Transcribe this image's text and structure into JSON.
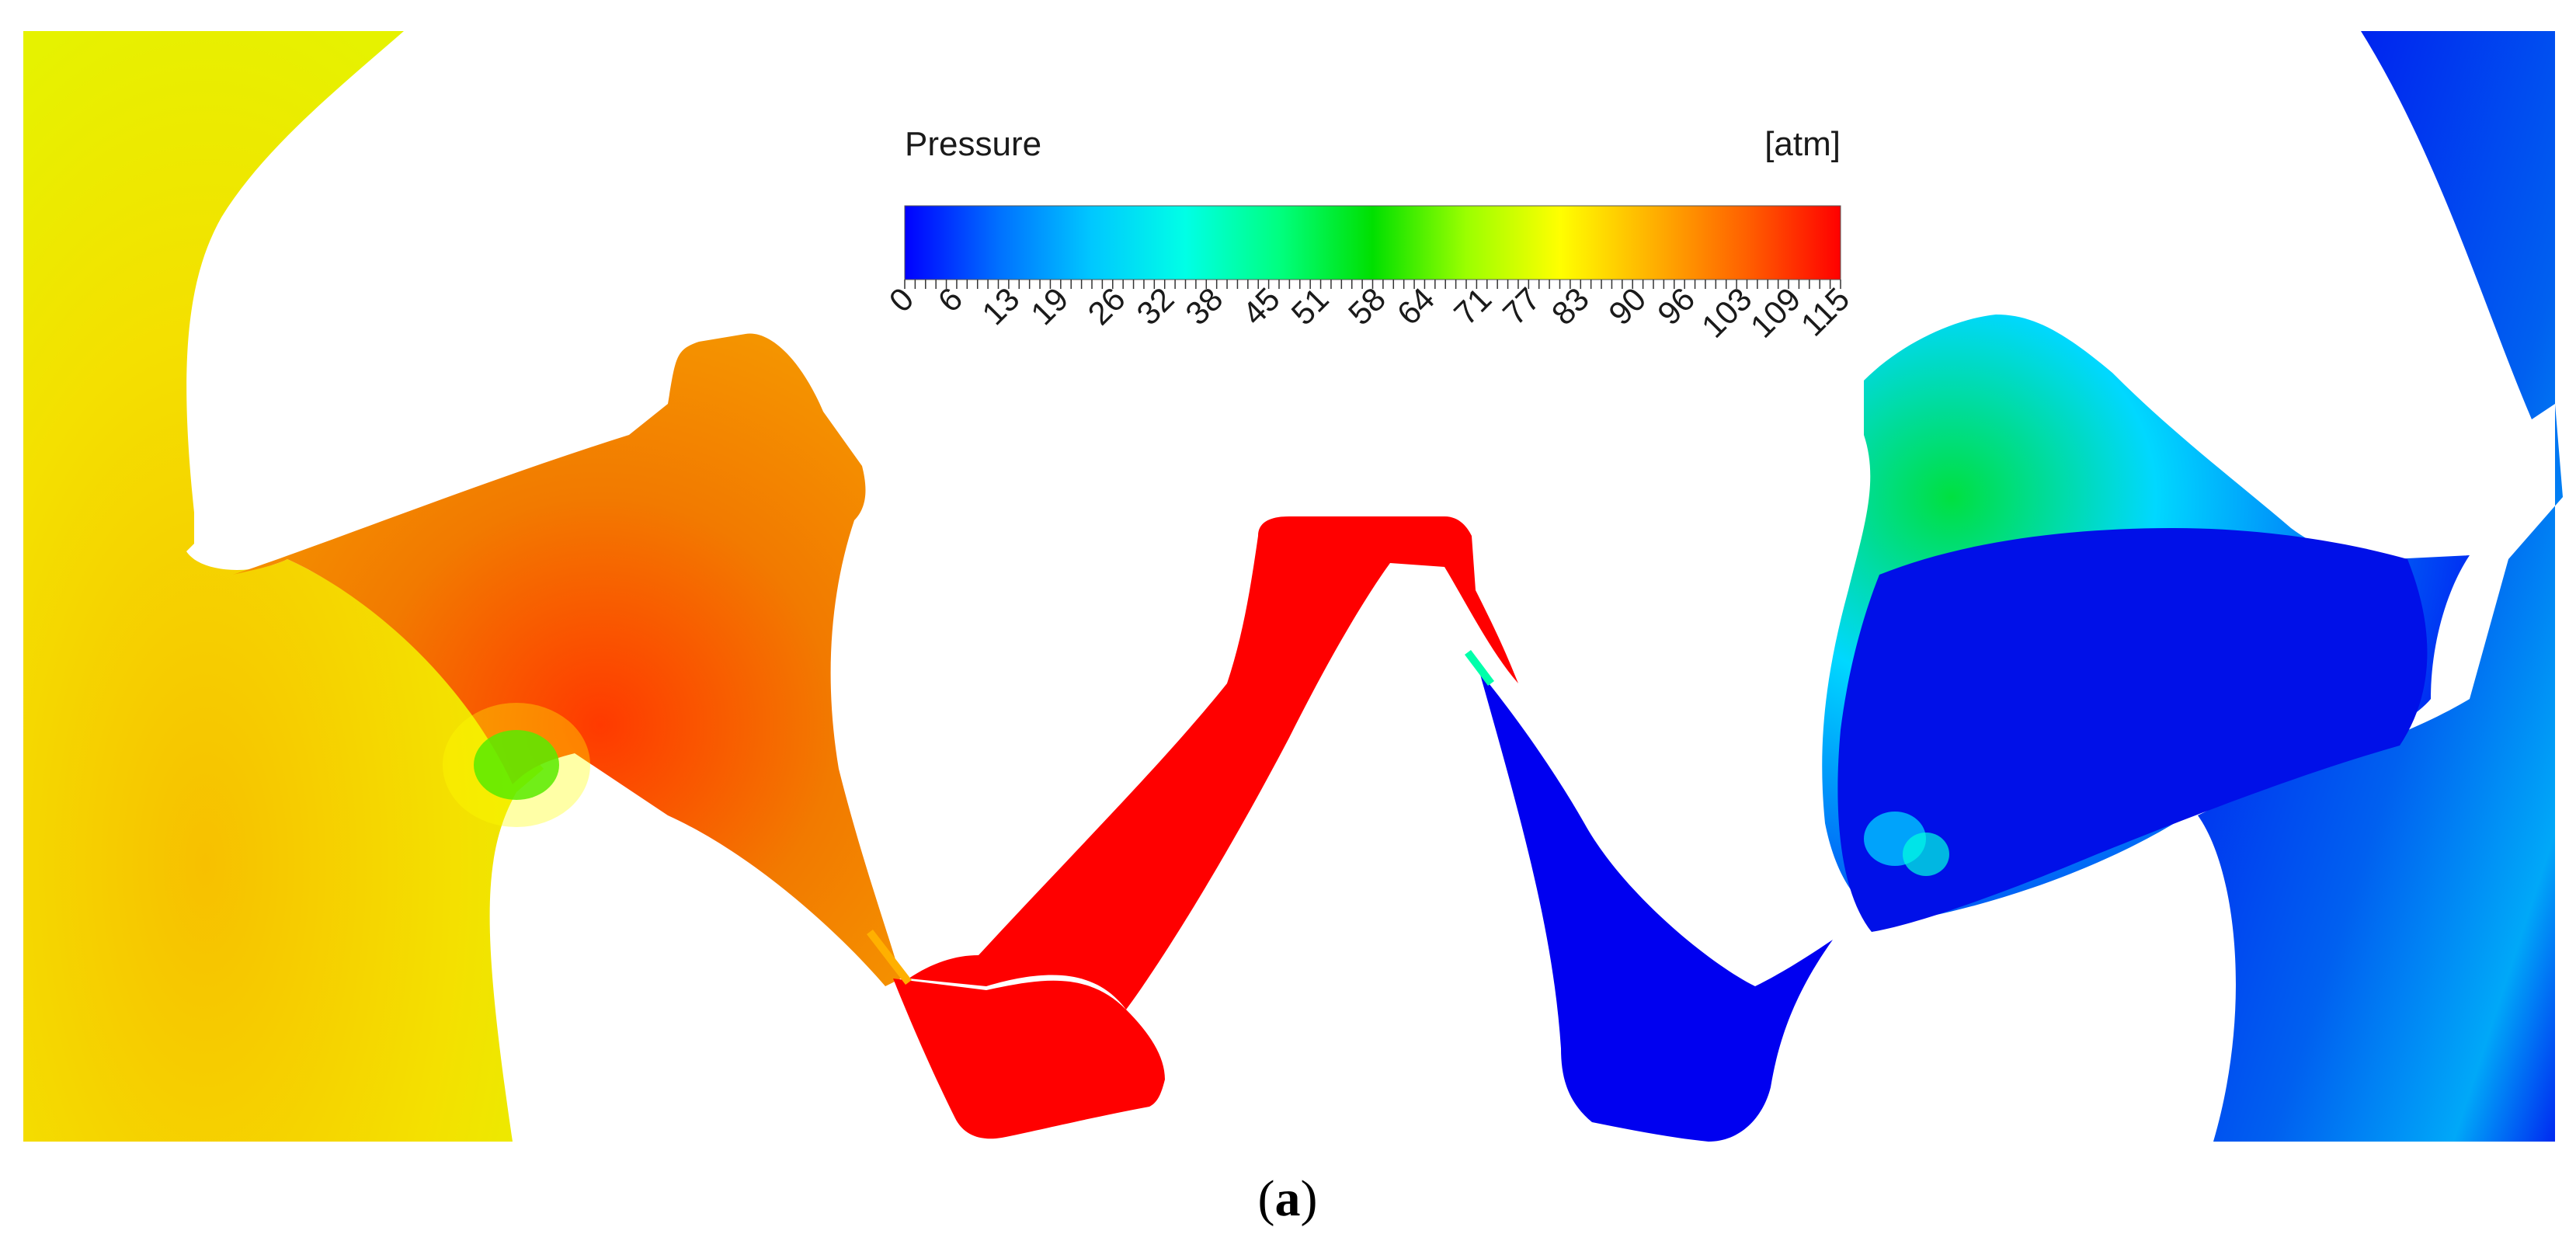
{
  "colorbar": {
    "title": "Pressure",
    "unit": "[atm]",
    "ticks": [
      "0",
      "6",
      "13",
      "19",
      "26",
      "32",
      "38",
      "45",
      "51",
      "58",
      "64",
      "71",
      "77",
      "83",
      "90",
      "96",
      "103",
      "109",
      "115"
    ],
    "range": [
      0,
      115
    ],
    "colormap": [
      "#0000ff",
      "#0070ff",
      "#00c8ff",
      "#00ffe6",
      "#00ff80",
      "#00e000",
      "#9bff00",
      "#ffff00",
      "#ffb000",
      "#ff6000",
      "#ff0000"
    ]
  },
  "regions": {
    "left_gear_color": "#f4e800",
    "left_tooth_color": "#f08a00",
    "center_tooth_color": "#ff0000",
    "lower_left_tooth_color": "#ff0000",
    "lower_right_tooth_color": "#0000f0",
    "right_gear_color": "#0040f0"
  },
  "caption": {
    "open": "(",
    "letter": "a",
    "close": ")"
  }
}
